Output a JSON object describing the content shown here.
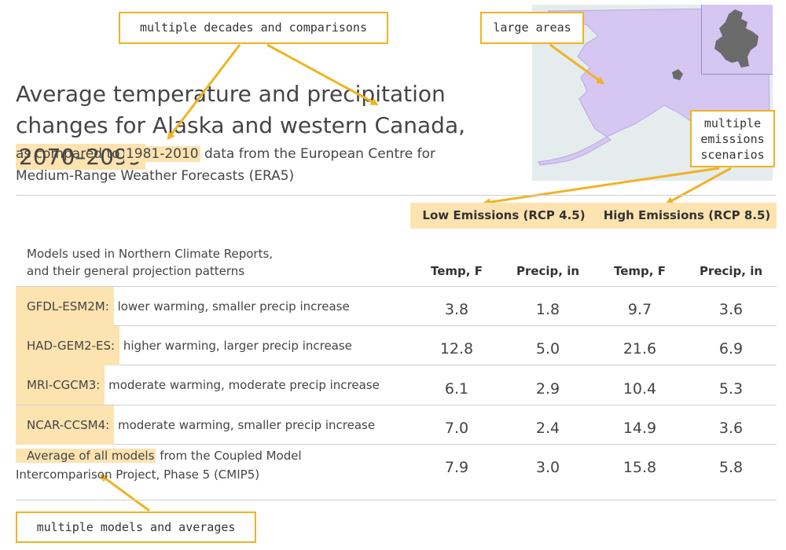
{
  "title_pre": "Average temperature and precipitation changes for Alaska and western Canada, ",
  "title_years": "2070–2099",
  "subtitle_pre": "as compared to ",
  "subtitle_years": "1981-2010",
  "subtitle_post": " data from the European Centre for Medium-Range Weather Forecasts (ERA5)",
  "annotations": {
    "decades": "multiple decades and comparisons",
    "areas": "large areas",
    "scenarios": [
      "multiple",
      "emissions",
      "scenarios"
    ],
    "models": "multiple models and averages"
  },
  "scenarios": {
    "low": "Low Emissions (RCP 4.5)",
    "high": "High Emissions (RCP 8.5)"
  },
  "table_desc": [
    "Models used in Northern Climate Reports,",
    "and their general projection patterns"
  ],
  "columns": [
    "Temp, F",
    "Precip, in",
    "Temp, F",
    "Precip, in"
  ],
  "rows": [
    {
      "model": "GFDL-ESM2M:",
      "desc": " lower warming, smaller precip increase",
      "values": [
        "3.8",
        "1.8",
        "9.7",
        "3.6"
      ]
    },
    {
      "model": "HAD-GEM2-ES:",
      "desc": " higher warming, larger precip increase",
      "values": [
        "12.8",
        "5.0",
        "21.6",
        "6.9"
      ]
    },
    {
      "model": "MRI-CGCM3:",
      "desc": " moderate warming, moderate precip increase",
      "values": [
        "6.1",
        "2.9",
        "10.4",
        "5.3"
      ]
    },
    {
      "model": "NCAR-CCSM4:",
      "desc": " moderate warming, smaller precip increase",
      "values": [
        "7.0",
        "2.4",
        "14.9",
        "3.6"
      ]
    }
  ],
  "average": {
    "name": "Average of all models",
    "desc": " from the Coupled Model Intercomparison Project, Phase 5 (CMIP5)",
    "values": [
      "7.9",
      "3.0",
      "15.8",
      "5.8"
    ]
  },
  "colors": {
    "highlight": "#fde3b0",
    "annotation_border": "#f0b323",
    "map_fill": "#d6c6f2",
    "map_water": "#e4ecee"
  }
}
